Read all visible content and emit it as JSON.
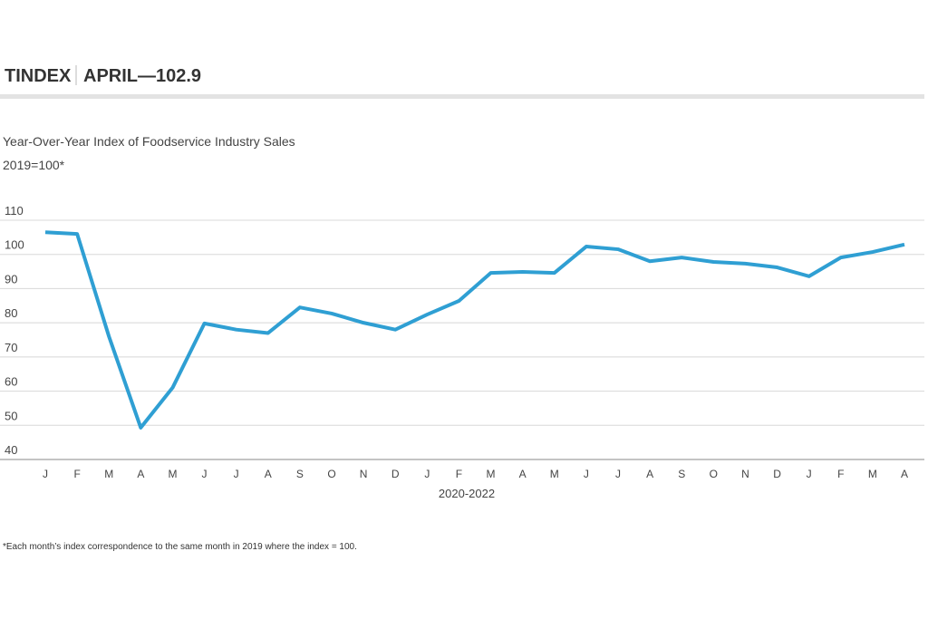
{
  "header": {
    "title": "TINDEX",
    "subtitle": "APRIL—102.9"
  },
  "chart_data": {
    "type": "line",
    "title": "Year-Over-Year Index of Foodservice Industry Sales",
    "subtitle": "2019=100*",
    "x_label": "2020-2022",
    "categories": [
      "J",
      "F",
      "M",
      "A",
      "M",
      "J",
      "J",
      "A",
      "S",
      "O",
      "N",
      "D",
      "J",
      "F",
      "M",
      "A",
      "M",
      "J",
      "J",
      "A",
      "S",
      "O",
      "N",
      "D",
      "J",
      "F",
      "M",
      "A"
    ],
    "series": [
      {
        "name": "Index",
        "color": "#2f9fd3",
        "values": [
          106.5,
          106,
          76,
          49.3,
          61,
          79.8,
          78,
          77,
          84.5,
          82.7,
          80,
          78,
          82.4,
          86.4,
          94.6,
          94.9,
          94.6,
          102.3,
          101.5,
          98,
          99.1,
          97.8,
          97.3,
          96.2,
          93.6,
          99.1,
          100.7,
          102.9
        ]
      }
    ],
    "ylim": [
      40,
      110
    ],
    "yticks": [
      40,
      50,
      60,
      70,
      80,
      90,
      100,
      110
    ],
    "grid": true,
    "footnote": "*Each month’s index correspondence to the same month in 2019 where the index = 100."
  }
}
